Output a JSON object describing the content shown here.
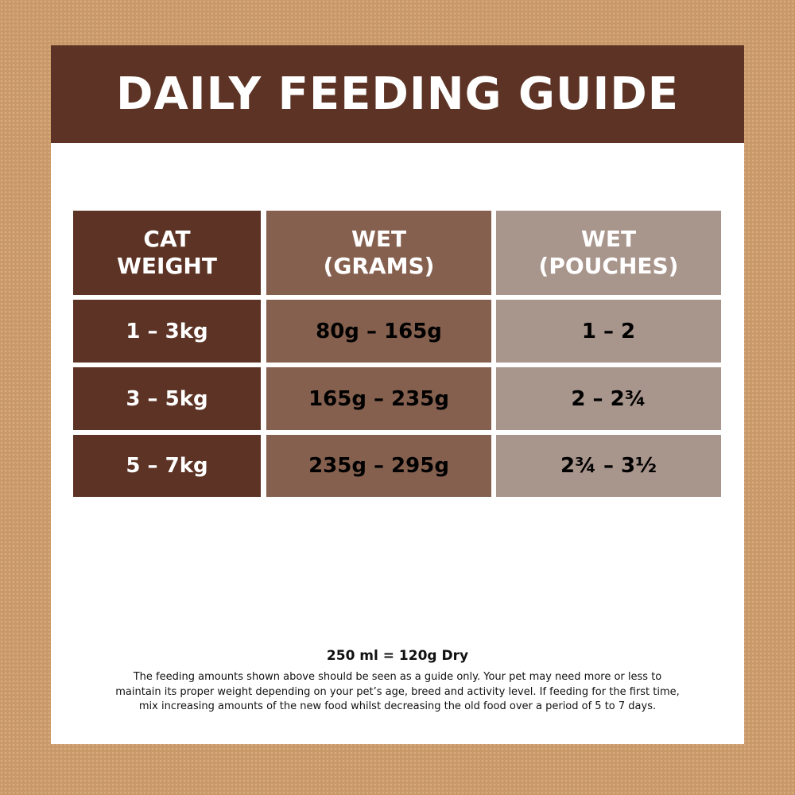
{
  "header": {
    "title": "DAILY FEEDING GUIDE"
  },
  "table": {
    "headers": [
      [
        "CAT",
        "WEIGHT"
      ],
      [
        "WET",
        "(GRAMS)"
      ],
      [
        "WET",
        "(POUCHES)"
      ]
    ],
    "rows": [
      [
        "1 – 3kg",
        "80g – 165g",
        "1 – 2"
      ],
      [
        "3 – 5kg",
        "165g – 235g",
        "2 – 2¾"
      ],
      [
        "5 – 7kg",
        "235g – 295g",
        "2¾ – 3½"
      ]
    ]
  },
  "footer": {
    "conversion": "250 ml = 120g Dry",
    "note": [
      "The feeding amounts shown above should be seen as a guide only. Your pet may need more or less to",
      "maintain its proper weight depending on your pet’s age, breed and activity level. If feeding for the first time,",
      "mix increasing amounts of the new food whilst decreasing the old food over a period of 5 to 7 days."
    ]
  }
}
